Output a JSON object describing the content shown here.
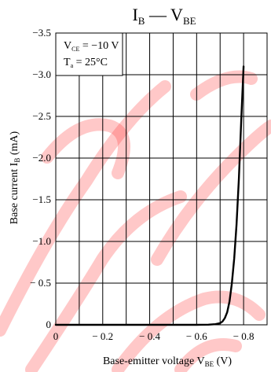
{
  "colors": {
    "watermark": "#ff3b3b",
    "grid": "#000000",
    "curve": "#000000",
    "background": "#ffffff"
  },
  "chart_data": {
    "type": "line",
    "title": {
      "main": "I",
      "main_sub": "B",
      "sep": " — ",
      "second": "V",
      "second_sub": "BE"
    },
    "xlabel": {
      "text": "Base-emitter voltage  V",
      "sub": "BE",
      "unit": "  (V)"
    },
    "ylabel": {
      "text": "Base current  I",
      "sub": "B",
      "unit": "  (mA)"
    },
    "xlim": [
      0,
      -0.9
    ],
    "ylim": [
      0,
      -3.5
    ],
    "x_ticks": [
      {
        "value": 0,
        "label": "0"
      },
      {
        "value": -0.2,
        "label": "− 0.2"
      },
      {
        "value": -0.4,
        "label": "− 0.4"
      },
      {
        "value": -0.6,
        "label": "− 0.6"
      },
      {
        "value": -0.8,
        "label": "− 0.8"
      }
    ],
    "x_grid": [
      -0.1,
      -0.2,
      -0.3,
      -0.4,
      -0.5,
      -0.6,
      -0.7,
      -0.8
    ],
    "y_ticks": [
      {
        "value": 0,
        "label": "0"
      },
      {
        "value": -0.5,
        "label": "− 0.5"
      },
      {
        "value": -1.0,
        "label": "−1.0"
      },
      {
        "value": -1.5,
        "label": "−1.5"
      },
      {
        "value": -2.0,
        "label": "−2.0"
      },
      {
        "value": -2.5,
        "label": "−2.5"
      },
      {
        "value": -3.0,
        "label": "−3.0"
      },
      {
        "value": -3.5,
        "label": "−3.5"
      }
    ],
    "grid": true,
    "legend": {
      "placement": "top-left",
      "line1": {
        "text": "V",
        "sub": "CE",
        "rest": " = −10 V"
      },
      "line2": {
        "text": "T",
        "sub": "a",
        "rest": " = 25°C"
      }
    },
    "series": [
      {
        "x": [
          0,
          -0.3,
          -0.5,
          -0.6,
          -0.65,
          -0.68,
          -0.7,
          -0.71,
          -0.72,
          -0.73,
          -0.74,
          -0.75,
          -0.76,
          -0.77,
          -0.78,
          -0.79,
          -0.8
        ],
        "y": [
          0,
          0,
          0,
          0,
          -0.002,
          -0.008,
          -0.02,
          -0.04,
          -0.08,
          -0.15,
          -0.28,
          -0.5,
          -0.8,
          -1.2,
          -1.75,
          -2.45,
          -3.1
        ]
      }
    ]
  }
}
